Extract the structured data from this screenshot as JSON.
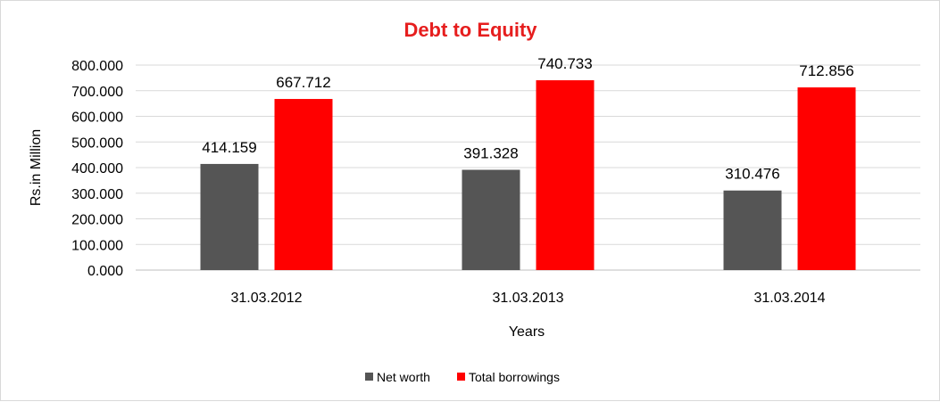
{
  "chart_data": {
    "type": "bar",
    "title": "Debt to Equity",
    "xlabel": "Years",
    "ylabel": "Rs.in Million",
    "categories": [
      "31.03.2012",
      "31.03.2013",
      "31.03.2014"
    ],
    "series": [
      {
        "name": "Net worth",
        "values": [
          414.159,
          391.328,
          310.476
        ],
        "color": "#555555",
        "labels": [
          "414.159",
          "391.328",
          "310.476"
        ]
      },
      {
        "name": "Total borrowings",
        "values": [
          667.712,
          740.733,
          712.856
        ],
        "color": "#ff0000",
        "labels": [
          "667.712",
          "740.733",
          "712.856"
        ]
      }
    ],
    "ylim": [
      0,
      800
    ],
    "yticks": [
      0,
      100,
      200,
      300,
      400,
      500,
      600,
      700,
      800
    ],
    "ytick_labels": [
      "0.000",
      "100.000",
      "200.000",
      "300.000",
      "400.000",
      "500.000",
      "600.000",
      "700.000",
      "800.000"
    ],
    "grid": true,
    "legend_position": "bottom",
    "title_color": "#e61e1e"
  }
}
